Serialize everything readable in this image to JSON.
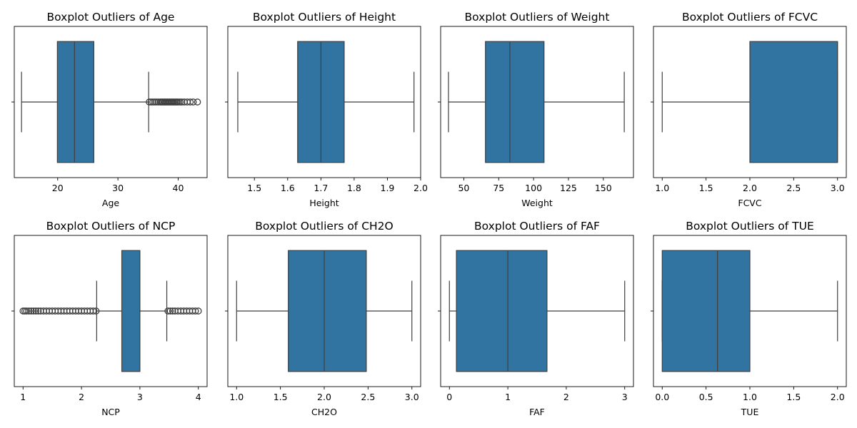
{
  "chart_data": [
    {
      "type": "boxplot",
      "title": "Boxplot Outliers of Age",
      "xlabel": "Age",
      "xlim": [
        12.8,
        44.8
      ],
      "xticks": [
        "20",
        "30",
        "40"
      ],
      "xtick_values": [
        20,
        30,
        40
      ],
      "stats": {
        "whisker_low": 14,
        "q1": 19.95,
        "median": 22.8,
        "q3": 26.0,
        "whisker_high": 35.1
      },
      "outliers": [
        35.2,
        35.5,
        35.8,
        36.1,
        36.4,
        36.7,
        37.0,
        37.2,
        37.4,
        37.6,
        37.8,
        38.0,
        38.2,
        38.4,
        38.6,
        38.8,
        39.0,
        39.2,
        39.4,
        39.6,
        39.8,
        40.0,
        40.3,
        40.6,
        41.0,
        41.5,
        42.0,
        42.5,
        43.2
      ]
    },
    {
      "type": "boxplot",
      "title": "Boxplot Outliers of Height",
      "xlabel": "Height",
      "xlim": [
        1.42,
        2.0
      ],
      "xticks": [
        "1.5",
        "1.6",
        "1.7",
        "1.8",
        "1.9",
        "2.0"
      ],
      "xtick_values": [
        1.5,
        1.6,
        1.7,
        1.8,
        1.9,
        2.0
      ],
      "stats": {
        "whisker_low": 1.45,
        "q1": 1.63,
        "median": 1.7,
        "q3": 1.77,
        "whisker_high": 1.98
      },
      "outliers": []
    },
    {
      "type": "boxplot",
      "title": "Boxplot Outliers of Weight",
      "xlabel": "Weight",
      "xlim": [
        33.4,
        171.6
      ],
      "xticks": [
        "50",
        "75",
        "100",
        "125",
        "150"
      ],
      "xtick_values": [
        50,
        75,
        100,
        125,
        150
      ],
      "stats": {
        "whisker_low": 39,
        "q1": 65.5,
        "median": 83.0,
        "q3": 107.5,
        "whisker_high": 165
      },
      "outliers": []
    },
    {
      "type": "boxplot",
      "title": "Boxplot Outliers of FCVC",
      "xlabel": "FCVC",
      "xlim": [
        0.9,
        3.1
      ],
      "xticks": [
        "1.0",
        "1.5",
        "2.0",
        "2.5",
        "3.0"
      ],
      "xtick_values": [
        1.0,
        1.5,
        2.0,
        2.5,
        3.0
      ],
      "stats": {
        "whisker_low": 1.0,
        "q1": 2.0,
        "median": 3.0,
        "q3": 3.0,
        "whisker_high": 3.0
      },
      "outliers": []
    },
    {
      "type": "boxplot",
      "title": "Boxplot Outliers of NCP",
      "xlabel": "NCP",
      "xlim": [
        0.85,
        4.15
      ],
      "xticks": [
        "1",
        "2",
        "3",
        "4"
      ],
      "xtick_values": [
        1,
        2,
        3,
        4
      ],
      "stats": {
        "whisker_low": 2.26,
        "q1": 2.69,
        "median": 3.0,
        "q3": 3.0,
        "whisker_high": 3.46
      },
      "outliers": [
        1.0,
        1.03,
        1.06,
        1.1,
        1.14,
        1.18,
        1.22,
        1.26,
        1.3,
        1.35,
        1.4,
        1.45,
        1.5,
        1.55,
        1.6,
        1.65,
        1.7,
        1.75,
        1.8,
        1.85,
        1.9,
        1.95,
        2.0,
        2.05,
        2.1,
        2.15,
        2.2,
        2.25,
        3.48,
        3.52,
        3.56,
        3.6,
        3.65,
        3.7,
        3.75,
        3.8,
        3.85,
        3.9,
        3.95,
        4.0
      ]
    },
    {
      "type": "boxplot",
      "title": "Boxplot Outliers of CH2O",
      "xlabel": "CH2O",
      "xlim": [
        0.9,
        3.1
      ],
      "xticks": [
        "1.0",
        "1.5",
        "2.0",
        "2.5",
        "3.0"
      ],
      "xtick_values": [
        1.0,
        1.5,
        2.0,
        2.5,
        3.0
      ],
      "stats": {
        "whisker_low": 1.0,
        "q1": 1.59,
        "median": 2.0,
        "q3": 2.48,
        "whisker_high": 3.0
      },
      "outliers": []
    },
    {
      "type": "boxplot",
      "title": "Boxplot Outliers of FAF",
      "xlabel": "FAF",
      "xlim": [
        -0.15,
        3.15
      ],
      "xticks": [
        "0",
        "1",
        "2",
        "3"
      ],
      "xtick_values": [
        0,
        1,
        2,
        3
      ],
      "stats": {
        "whisker_low": 0.0,
        "q1": 0.12,
        "median": 1.0,
        "q3": 1.67,
        "whisker_high": 3.0
      },
      "outliers": []
    },
    {
      "type": "boxplot",
      "title": "Boxplot Outliers of TUE",
      "xlabel": "TUE",
      "xlim": [
        -0.1,
        2.1
      ],
      "xticks": [
        "0.0",
        "0.5",
        "1.0",
        "1.5",
        "2.0"
      ],
      "xtick_values": [
        0.0,
        0.5,
        1.0,
        1.5,
        2.0
      ],
      "stats": {
        "whisker_low": 0.0,
        "q1": 0.0,
        "median": 0.63,
        "q3": 1.0,
        "whisker_high": 2.0
      },
      "outliers": []
    }
  ],
  "colors": {
    "box_fill": "#3274a1",
    "line": "#3f3f3f",
    "frame": "#000000"
  }
}
